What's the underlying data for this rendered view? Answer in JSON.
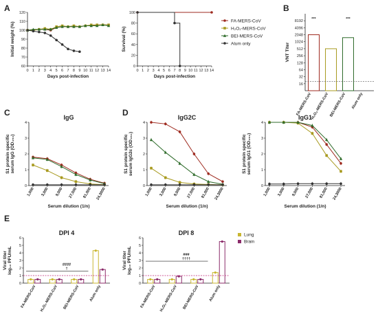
{
  "colors": {
    "fa": "#9e2a1f",
    "h2o2": "#a89a1f",
    "bei": "#2e6b2a",
    "alum": "#333333",
    "lung": "#c9b630",
    "brain": "#8b2b6a",
    "threshold": "#c0287a"
  },
  "panels": {
    "A": "A",
    "B": "B",
    "C": "C",
    "D": "D",
    "E": "E"
  },
  "legend_groups": {
    "fa": "FA-MERS-CoV",
    "h2o2": "H₂O₂-MERS-CoV",
    "bei": "BEI-MERS-CoV",
    "alum": "Alum only"
  },
  "legend_tissue": {
    "lung": "Lung",
    "brain": "Brain"
  },
  "chart_data": [
    {
      "id": "A-weight",
      "type": "line",
      "xlabel": "Days post-infection",
      "ylabel": "Initial weight (%)",
      "x_ticks": [
        "0",
        "1",
        "2",
        "3",
        "4",
        "5",
        "6",
        "7",
        "8",
        "9",
        "10",
        "11",
        "12",
        "13",
        "14"
      ],
      "y_ticks": [
        "60",
        "70",
        "80",
        "90",
        "100",
        "110",
        "120"
      ],
      "xlim": [
        0,
        14
      ],
      "ylim": [
        60,
        120
      ],
      "x": [
        0,
        1,
        2,
        3,
        4,
        5,
        6,
        7,
        8,
        9,
        10,
        11,
        12,
        13,
        14
      ],
      "series": [
        {
          "key": "fa",
          "values": [
            100,
            100,
            101,
            101,
            100,
            103,
            104,
            104,
            104,
            104,
            105,
            105,
            106,
            106,
            106
          ]
        },
        {
          "key": "h2o2",
          "values": [
            100,
            100,
            101,
            102,
            101,
            104,
            105,
            104,
            105,
            104,
            105,
            106,
            106,
            106,
            106
          ]
        },
        {
          "key": "bei",
          "values": [
            100,
            101,
            101,
            101,
            101,
            103,
            104,
            104,
            104,
            104,
            105,
            105,
            105,
            106,
            105
          ]
        },
        {
          "key": "alum",
          "values": [
            100,
            99,
            98,
            97,
            94,
            89,
            84,
            79,
            77,
            76,
            null,
            null,
            null,
            null,
            null
          ]
        }
      ]
    },
    {
      "id": "A-survival",
      "type": "line",
      "xlabel": "Days post-infection",
      "ylabel": "Survival (%)",
      "x_ticks": [
        "0",
        "1",
        "2",
        "3",
        "4",
        "5",
        "6",
        "7",
        "8",
        "9",
        "10",
        "11",
        "12",
        "13",
        "14"
      ],
      "y_ticks": [
        "0",
        "20",
        "40",
        "60",
        "80",
        "100"
      ],
      "xlim": [
        0,
        14
      ],
      "ylim": [
        0,
        100
      ],
      "series": [
        {
          "key": "vaccinated",
          "x": [
            0,
            14
          ],
          "values": [
            100,
            100
          ]
        },
        {
          "key": "alum",
          "x": [
            0,
            7,
            7,
            8,
            8
          ],
          "values": [
            100,
            100,
            80,
            80,
            0
          ]
        }
      ]
    },
    {
      "id": "B",
      "type": "bar",
      "ylabel": "VNT Titer",
      "categories": [
        "FA-MERS-CoV",
        "H₂O₂-MERS-CoV",
        "BEI-MERS-CoV",
        "Alum only"
      ],
      "y_ticks": [
        "16",
        "32",
        "64",
        "128",
        "256",
        "512",
        "1024",
        "2048",
        "4096",
        "8192"
      ],
      "scale": "log2",
      "ylim": [
        8,
        16384
      ],
      "values": [
        2048,
        512,
        1536,
        8
      ],
      "significance": [
        "***",
        "",
        "***",
        ""
      ],
      "threshold": 20
    },
    {
      "id": "C",
      "type": "line",
      "title": "IgG",
      "xlabel": "Serum dilution (1/n)",
      "ylabel": "S1 protein specific serum IgG (OD₄₅₀)",
      "categories": [
        "1,000",
        "3,000",
        "9,000",
        "27,000",
        "81,000",
        "24,3000"
      ],
      "y_ticks": [
        "0",
        "1",
        "2",
        "3",
        "4"
      ],
      "ylim": [
        0,
        4
      ],
      "series": [
        {
          "key": "fa",
          "values": [
            1.8,
            1.7,
            1.3,
            0.8,
            0.4,
            0.15
          ]
        },
        {
          "key": "h2o2",
          "values": [
            1.3,
            0.95,
            0.5,
            0.25,
            0.1,
            0.06
          ]
        },
        {
          "key": "bei",
          "values": [
            1.75,
            1.65,
            1.2,
            0.7,
            0.35,
            0.12
          ]
        },
        {
          "key": "alum",
          "values": [
            0.05,
            0.05,
            0.05,
            0.05,
            0.05,
            0.05
          ]
        }
      ]
    },
    {
      "id": "D1",
      "type": "line",
      "title": "IgG2C",
      "xlabel": "Serum dilution (1/n)",
      "ylabel": "S1 protein specific serum IgG2c (OD₄₅₀)",
      "categories": [
        "1,000",
        "3,000",
        "9,000",
        "27,000",
        "81,000",
        "24,3000"
      ],
      "y_ticks": [
        "0",
        "1",
        "2",
        "3",
        "4"
      ],
      "ylim": [
        0,
        4
      ],
      "series": [
        {
          "key": "fa",
          "values": [
            4.0,
            3.9,
            3.4,
            2.0,
            0.75,
            0.25
          ]
        },
        {
          "key": "h2o2",
          "values": [
            1.1,
            0.5,
            0.2,
            0.1,
            0.07,
            0.05
          ]
        },
        {
          "key": "bei",
          "values": [
            2.9,
            2.1,
            1.4,
            0.7,
            0.25,
            0.08
          ]
        },
        {
          "key": "alum",
          "values": [
            0.05,
            0.05,
            0.05,
            0.05,
            0.05,
            0.05
          ]
        }
      ]
    },
    {
      "id": "D2",
      "type": "line",
      "title": "IgG1",
      "xlabel": "Serum dilution (1/n)",
      "ylabel": "S1 protein specific serum IgG1 (OD₄₅₀)",
      "categories": [
        "1,000",
        "3,000",
        "9,000",
        "27,000",
        "81,000",
        "24,3000"
      ],
      "y_ticks": [
        "0",
        "1",
        "2",
        "3",
        "4"
      ],
      "ylim": [
        0,
        4
      ],
      "series": [
        {
          "key": "fa",
          "values": [
            4.0,
            4.0,
            4.0,
            3.7,
            2.6,
            1.4
          ]
        },
        {
          "key": "h2o2",
          "values": [
            4.0,
            4.0,
            3.95,
            3.3,
            1.9,
            0.9
          ]
        },
        {
          "key": "bei",
          "values": [
            4.0,
            4.0,
            4.0,
            3.8,
            2.9,
            1.7
          ]
        },
        {
          "key": "alum",
          "values": [
            0.1,
            0.1,
            0.12,
            0.12,
            0.12,
            0.12
          ]
        }
      ]
    },
    {
      "id": "E1",
      "type": "bar",
      "title": "DPI 4",
      "ylabel": "Viral titer log₁₀ PFU/mL",
      "categories": [
        "FA-MERS-CoV",
        "H₂O₂-MERS-CoV",
        "BEI-MERS-CoV",
        "Alum only"
      ],
      "y_ticks": [
        "0",
        "1",
        "2",
        "3",
        "4",
        "5",
        "6"
      ],
      "ylim": [
        0,
        6
      ],
      "series": [
        {
          "key": "lung",
          "values": [
            0.5,
            0.5,
            0.5,
            4.3
          ]
        },
        {
          "key": "brain",
          "values": [
            0.5,
            0.5,
            0.5,
            1.8
          ]
        }
      ],
      "threshold": 1.0,
      "annotation": {
        "line1": "####",
        "line2": "†"
      },
      "bracket_y": 1.6
    },
    {
      "id": "E2",
      "type": "bar",
      "title": "DPI 8",
      "ylabel": "Viral titer log₁₀ PFU/mL",
      "categories": [
        "FA-MERS-CoV",
        "H₂O₂-MERS-CoV",
        "BEI-MERS-CoV",
        "Alum only"
      ],
      "y_ticks": [
        "0",
        "1",
        "2",
        "3",
        "4",
        "5",
        "6"
      ],
      "ylim": [
        0,
        6
      ],
      "series": [
        {
          "key": "lung",
          "values": [
            0.5,
            0.5,
            0.5,
            1.4
          ]
        },
        {
          "key": "brain",
          "values": [
            0.5,
            0.9,
            0.5,
            5.5
          ]
        }
      ],
      "threshold": 1.0,
      "annotation": {
        "line1": "###",
        "line2": "††††"
      },
      "bracket_y": 2.9
    }
  ]
}
